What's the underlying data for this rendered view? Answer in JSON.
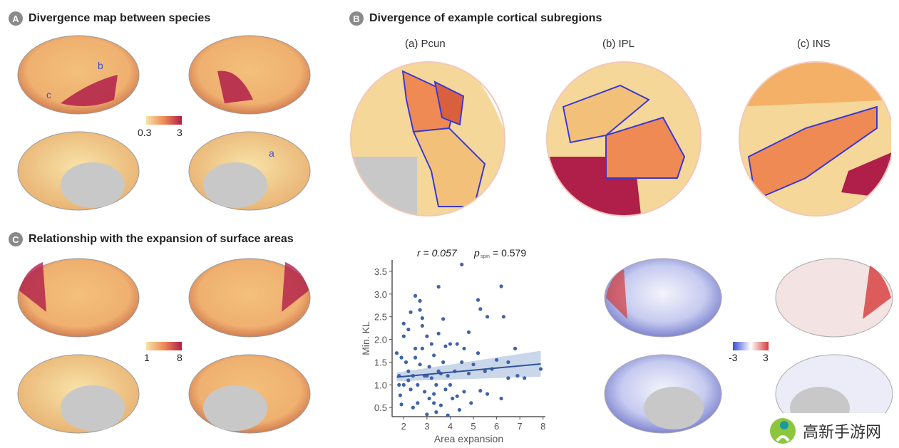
{
  "panels": {
    "A": {
      "badge": "A",
      "title": "Divergence map between species",
      "labels": [
        "b",
        "c",
        "a"
      ],
      "colorbar": {
        "min": "0.3",
        "max": "3"
      }
    },
    "B": {
      "badge": "B",
      "title": "Divergence of example cortical subregions",
      "subregions": [
        "(a) Pcun",
        "(b) IPL",
        "(c) INS"
      ]
    },
    "C": {
      "badge": "C",
      "title": "Relationship with the expansion of surface areas",
      "colorbar": {
        "min": "1",
        "max": "8"
      },
      "diverging_colorbar": {
        "min": "-3",
        "max": "3"
      }
    }
  },
  "colors": {
    "low": "#f8e3a8",
    "mid": "#ef8a55",
    "high": "#b01e4a",
    "blue": "#3a4fd8",
    "red": "#d63a3a",
    "point": "#3f64a6"
  },
  "chart_data": {
    "type": "scatter",
    "xlabel": "Area expansion",
    "ylabel": "Min. KL",
    "stat_r": "r = 0.057",
    "stat_p_label": "p",
    "stat_p_sub": "spin",
    "stat_p_value": "= 0.579",
    "xlim": [
      1.5,
      8.1
    ],
    "ylim": [
      0.3,
      3.75
    ],
    "xticks": [
      "2",
      "3",
      "4",
      "5",
      "6",
      "7",
      "8"
    ],
    "yticks": [
      "0.5",
      "1.0",
      "1.5",
      "2.0",
      "2.5",
      "3.0",
      "3.5"
    ],
    "fit": {
      "x": [
        1.7,
        7.9
      ],
      "y": [
        1.17,
        1.46
      ],
      "ci_low": [
        1.08,
        1.18
      ],
      "ci_high": [
        1.27,
        1.75
      ]
    },
    "points": [
      [
        1.7,
        1.7
      ],
      [
        1.8,
        1.0
      ],
      [
        1.8,
        1.2
      ],
      [
        1.9,
        1.6
      ],
      [
        1.9,
        0.57
      ],
      [
        1.85,
        0.77
      ],
      [
        2.0,
        2.35
      ],
      [
        2.0,
        2.07
      ],
      [
        2.0,
        1.0
      ],
      [
        2.1,
        1.5
      ],
      [
        2.2,
        2.22
      ],
      [
        2.2,
        1.3
      ],
      [
        2.3,
        2.6
      ],
      [
        2.3,
        0.9
      ],
      [
        2.4,
        1.2
      ],
      [
        2.4,
        0.5
      ],
      [
        2.5,
        2.96
      ],
      [
        2.5,
        1.8
      ],
      [
        2.5,
        1.6
      ],
      [
        2.6,
        0.6
      ],
      [
        2.6,
        1.0
      ],
      [
        2.7,
        2.85
      ],
      [
        2.7,
        2.65
      ],
      [
        2.8,
        2.47
      ],
      [
        2.8,
        2.3
      ],
      [
        2.8,
        1.8
      ],
      [
        2.9,
        1.2
      ],
      [
        2.9,
        0.85
      ],
      [
        3.0,
        2.07
      ],
      [
        3.0,
        0.35
      ],
      [
        3.1,
        1.4
      ],
      [
        3.1,
        0.7
      ],
      [
        3.2,
        1.9
      ],
      [
        3.2,
        1.15
      ],
      [
        3.3,
        1.65
      ],
      [
        3.3,
        0.8
      ],
      [
        3.4,
        1.0
      ],
      [
        3.4,
        0.4
      ],
      [
        3.5,
        3.16
      ],
      [
        3.5,
        2.13
      ],
      [
        3.5,
        1.3
      ],
      [
        3.6,
        0.55
      ],
      [
        3.7,
        2.45
      ],
      [
        3.7,
        1.5
      ],
      [
        3.8,
        0.9
      ],
      [
        3.8,
        1.85
      ],
      [
        3.9,
        0.33
      ],
      [
        3.9,
        1.2
      ],
      [
        4.0,
        1.9
      ],
      [
        4.1,
        0.7
      ],
      [
        4.2,
        1.3
      ],
      [
        4.3,
        1.9
      ],
      [
        4.4,
        0.45
      ],
      [
        4.5,
        3.65
      ],
      [
        4.5,
        1.5
      ],
      [
        4.6,
        1.8
      ],
      [
        4.6,
        0.85
      ],
      [
        4.8,
        2.16
      ],
      [
        4.9,
        0.6
      ],
      [
        5.0,
        1.45
      ],
      [
        5.2,
        2.87
      ],
      [
        5.2,
        1.7
      ],
      [
        5.3,
        2.67
      ],
      [
        5.3,
        0.87
      ],
      [
        5.5,
        1.3
      ],
      [
        5.6,
        2.5
      ],
      [
        5.6,
        0.8
      ],
      [
        5.8,
        1.35
      ],
      [
        6.0,
        1.55
      ],
      [
        6.2,
        3.17
      ],
      [
        6.2,
        0.7
      ],
      [
        6.3,
        2.5
      ],
      [
        6.5,
        1.5
      ],
      [
        6.5,
        1.15
      ],
      [
        6.8,
        1.8
      ],
      [
        6.9,
        1.2
      ],
      [
        7.2,
        1.15
      ],
      [
        7.9,
        1.35
      ],
      [
        4.0,
        1.0
      ],
      [
        3.0,
        1.2
      ],
      [
        2.2,
        1.1
      ],
      [
        3.6,
        1.25
      ],
      [
        4.8,
        1.25
      ],
      [
        2.7,
        1.45
      ],
      [
        3.3,
        0.6
      ],
      [
        4.3,
        0.75
      ]
    ]
  },
  "watermark": {
    "text": "高新手游网"
  }
}
